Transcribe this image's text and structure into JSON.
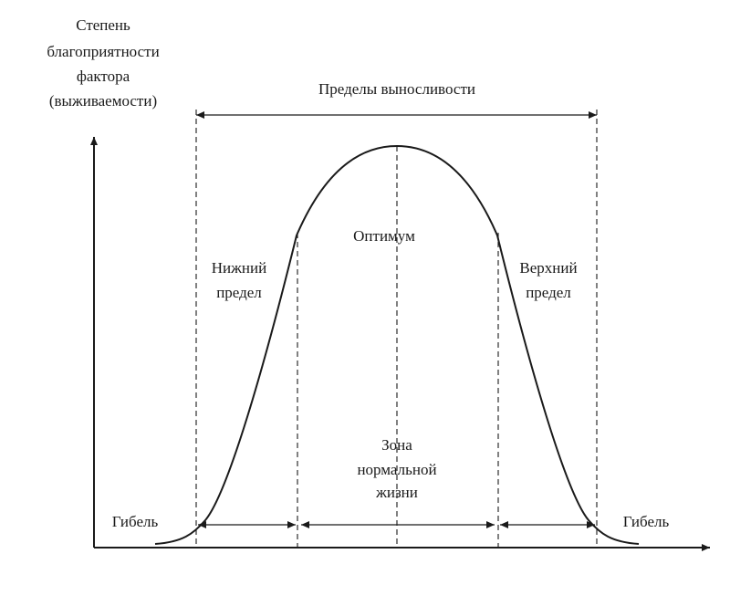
{
  "y_axis_label": [
    "Степень",
    "благоприятности",
    "фактора",
    "(выживаемости)"
  ],
  "endurance_label": "Пределы выносливости",
  "optimum_label": "Оптимум",
  "lower_limit_label": [
    "Нижний",
    "предел"
  ],
  "upper_limit_label": [
    "Верхний",
    "предел"
  ],
  "normal_zone_label": [
    "Зона",
    "нормальной",
    "жизни"
  ],
  "death_left_label": "Гибель",
  "death_right_label": "Гибель"
}
